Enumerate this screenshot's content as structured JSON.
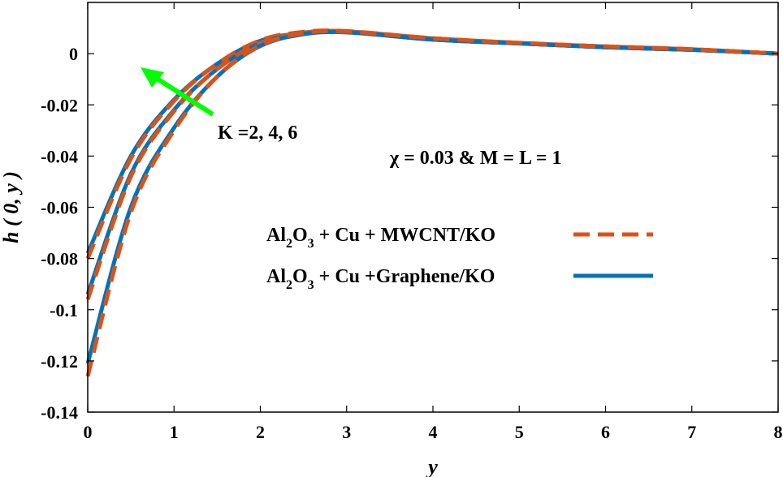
{
  "chart_data": {
    "type": "line",
    "xlabel": "y",
    "ylabel": "h ( 0, y )",
    "xlim": [
      0,
      8
    ],
    "ylim": [
      -0.14,
      0.02
    ],
    "xticks": [
      0,
      1,
      2,
      3,
      4,
      5,
      6,
      7,
      8
    ],
    "xtick_labels": [
      "0",
      "1",
      "2",
      "3",
      "4",
      "5",
      "6",
      "7",
      "8"
    ],
    "yticks": [
      0,
      -0.02,
      -0.04,
      -0.06,
      -0.08,
      -0.1,
      -0.12,
      -0.14
    ],
    "ytick_labels": [
      "0",
      "-0.02",
      "-0.04",
      "-0.06",
      "-0.08",
      "-0.1",
      "-0.12",
      "-0.14"
    ],
    "grid": false,
    "legend_position": "center-right",
    "colors": {
      "mwcnt": "#D95319",
      "graphene": "#0072BD",
      "arrow": "#00FF00"
    },
    "annotations": {
      "arrow_label": "K =2, 4, 6",
      "params_label": "χ = 0.03 & M = L = 1"
    },
    "legend": [
      {
        "parts": [
          "Al",
          "2",
          "O",
          "3",
          " + Cu + MWCNT/KO"
        ],
        "style": "dashed",
        "color": "#D95319"
      },
      {
        "parts": [
          "Al",
          "2",
          "O",
          "3",
          " + Cu +Graphene/KO"
        ],
        "style": "solid",
        "color": "#0072BD"
      }
    ],
    "series": [
      {
        "legend_ref": 1,
        "style": "solid",
        "color": "#0072BD",
        "x": [
          0,
          0.5,
          1,
          1.5,
          2,
          2.5,
          3,
          4,
          5,
          6,
          7,
          8
        ],
        "y": [
          -0.078,
          -0.04,
          -0.018,
          -0.004,
          0.005,
          0.008,
          0.0085,
          0.0055,
          0.004,
          0.0025,
          0.0015,
          0
        ]
      },
      {
        "legend_ref": 0,
        "style": "dashed",
        "color": "#D95319",
        "x": [
          0,
          0.5,
          1,
          1.5,
          2,
          2.5,
          3,
          4,
          5,
          6,
          7,
          8
        ],
        "y": [
          -0.08,
          -0.041,
          -0.0185,
          -0.004,
          0.0052,
          0.0085,
          0.0088,
          0.006,
          0.0042,
          0.0028,
          0.0017,
          0
        ]
      },
      {
        "legend_ref": 1,
        "style": "solid",
        "color": "#0072BD",
        "x": [
          0,
          0.5,
          1,
          1.5,
          2,
          2.5,
          3,
          4,
          5,
          6,
          7,
          8
        ],
        "y": [
          -0.094,
          -0.047,
          -0.022,
          -0.006,
          0.004,
          0.0078,
          0.0084,
          0.0055,
          0.004,
          0.0025,
          0.0015,
          0
        ]
      },
      {
        "legend_ref": 0,
        "style": "dashed",
        "color": "#D95319",
        "x": [
          0,
          0.5,
          1,
          1.5,
          2,
          2.5,
          3,
          4,
          5,
          6,
          7,
          8
        ],
        "y": [
          -0.096,
          -0.048,
          -0.0225,
          -0.006,
          0.0042,
          0.0082,
          0.0087,
          0.006,
          0.0042,
          0.0028,
          0.0017,
          0
        ]
      },
      {
        "legend_ref": 1,
        "style": "solid",
        "color": "#0072BD",
        "x": [
          0,
          0.5,
          1,
          1.5,
          2,
          2.5,
          3,
          4,
          5,
          6,
          7,
          8
        ],
        "y": [
          -0.121,
          -0.06,
          -0.029,
          -0.009,
          0.003,
          0.0076,
          0.0083,
          0.0055,
          0.004,
          0.0025,
          0.0015,
          0
        ]
      },
      {
        "legend_ref": 0,
        "style": "dashed",
        "color": "#D95319",
        "x": [
          0,
          0.5,
          1,
          1.5,
          2,
          2.5,
          3,
          4,
          5,
          6,
          7,
          8
        ],
        "y": [
          -0.126,
          -0.062,
          -0.03,
          -0.009,
          0.0032,
          0.008,
          0.0086,
          0.006,
          0.0042,
          0.0028,
          0.0017,
          0
        ]
      }
    ]
  }
}
